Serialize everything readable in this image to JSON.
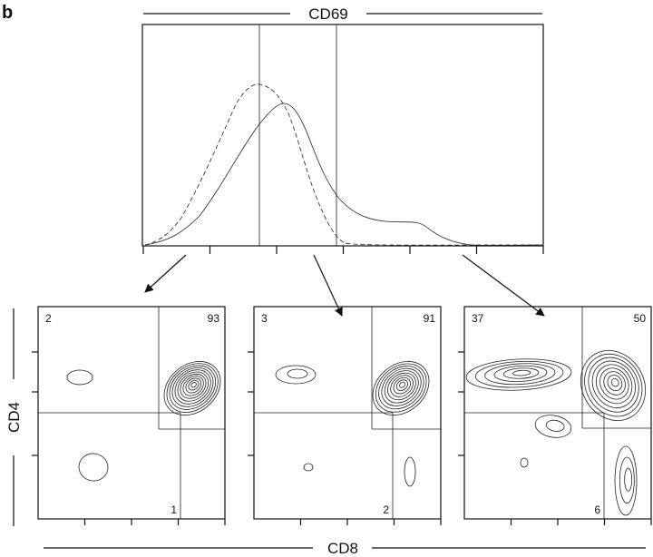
{
  "panel_label": "b",
  "histogram": {
    "axis_label": "CD69"
  },
  "x_axis_label": "CD8",
  "y_axis_label": "CD4",
  "contour_plots": [
    {
      "quadrants": [
        2,
        93,
        1
      ]
    },
    {
      "quadrants": [
        3,
        91,
        2
      ]
    },
    {
      "quadrants": [
        37,
        50,
        6
      ]
    }
  ]
}
